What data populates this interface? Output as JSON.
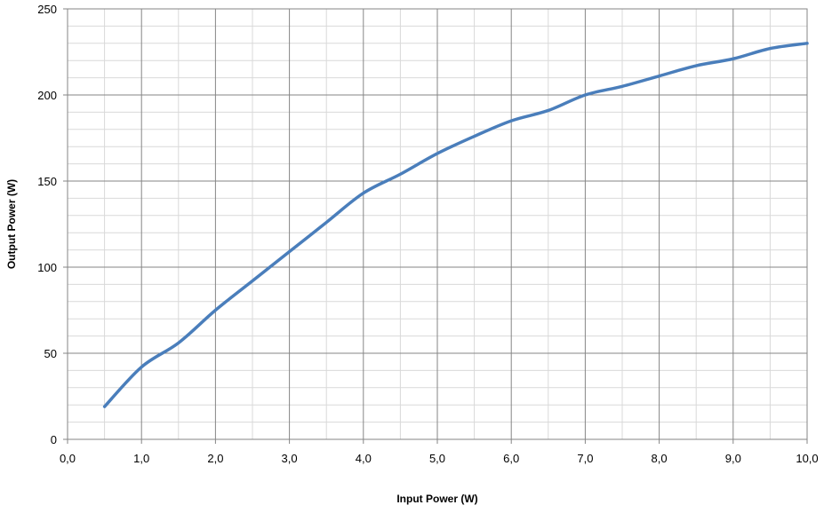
{
  "chart_data": {
    "type": "line",
    "title": "",
    "xlabel": "Input Power (W)",
    "ylabel": "Output Power (W)",
    "xlim": [
      0,
      10
    ],
    "ylim": [
      0,
      250
    ],
    "x_ticks": [
      0,
      1,
      2,
      3,
      4,
      5,
      6,
      7,
      8,
      9,
      10
    ],
    "x_tick_labels": [
      "0,0",
      "1,0",
      "2,0",
      "3,0",
      "4,0",
      "5,0",
      "6,0",
      "7,0",
      "8,0",
      "9,0",
      "10,0"
    ],
    "y_ticks": [
      0,
      50,
      100,
      150,
      200,
      250
    ],
    "y_tick_labels": [
      "0",
      "50",
      "100",
      "150",
      "200",
      "250"
    ],
    "x_minor_step": 0.5,
    "y_minor_step": 10,
    "grid": true,
    "legend": "none",
    "series": [
      {
        "color": "#4a7ebb",
        "x": [
          0.5,
          1.0,
          1.5,
          2.0,
          2.5,
          3.0,
          3.5,
          4.0,
          4.5,
          5.0,
          5.5,
          6.0,
          6.5,
          7.0,
          7.5,
          8.0,
          8.5,
          9.0,
          9.5,
          10.0
        ],
        "y": [
          19,
          42,
          56,
          75,
          92,
          109,
          126,
          143,
          154,
          166,
          176,
          185,
          191,
          200,
          205,
          211,
          217,
          221,
          227,
          230
        ]
      }
    ]
  }
}
